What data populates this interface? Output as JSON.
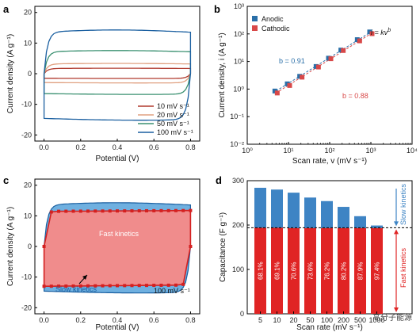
{
  "chart_data": [
    {
      "panel": "a",
      "type": "line",
      "xlabel": "Potential (V)",
      "ylabel": "Current density (A g⁻¹)",
      "xlim": [
        -0.05,
        0.85
      ],
      "ylim": [
        -22,
        22
      ],
      "xticks": [
        "0.0",
        "0.2",
        "0.4",
        "0.6",
        "0.8"
      ],
      "yticks": [
        "-20",
        "-10",
        "0",
        "10",
        "20"
      ],
      "legend_position": "bottom-right",
      "series": [
        {
          "name": "10 mV s⁻¹",
          "color": "#b03a2e",
          "upper": 1.7,
          "lower": -1.5
        },
        {
          "name": "20 mV s⁻¹",
          "color": "#e0a080",
          "upper": 3.2,
          "lower": -2.9
        },
        {
          "name": "50 mV s⁻¹",
          "color": "#3a9070",
          "upper": 7.2,
          "lower": -6.5
        },
        {
          "name": "100 mV s⁻¹",
          "color": "#1a5fa0",
          "upper": 13.6,
          "lower": -14.6
        }
      ]
    },
    {
      "panel": "b",
      "type": "scatter",
      "xlabel": "Scan rate, v (mV s⁻¹)",
      "ylabel": "Current density, i (A g⁻¹)",
      "log_scale": true,
      "xlim": [
        1,
        10000
      ],
      "ylim": [
        0.01,
        1000
      ],
      "xticks": [
        "10⁰",
        "10¹",
        "10²",
        "10³",
        "10⁴"
      ],
      "yticks": [
        "10⁻²",
        "10⁻¹",
        "10⁰",
        "10¹",
        "10²",
        "10³"
      ],
      "x": [
        5,
        10,
        20,
        50,
        100,
        200,
        500,
        1000
      ],
      "series": [
        {
          "name": "Anodic",
          "color": "#2a6fa8",
          "values": [
            0.85,
            1.55,
            2.9,
            6.6,
            13.2,
            26,
            62,
            118
          ]
        },
        {
          "name": "Cathodic",
          "color": "#d84848",
          "values": [
            0.72,
            1.35,
            2.7,
            6.3,
            12.6,
            25,
            56,
            102
          ]
        }
      ],
      "equation": "i = kv",
      "equation_exp": "b",
      "fits": [
        {
          "text": "b = 0.91",
          "color": "#2a6fa8"
        },
        {
          "text": "b = 0.88",
          "color": "#d84848"
        }
      ],
      "legend_position": "top-left"
    },
    {
      "panel": "c",
      "type": "area",
      "xlabel": "Potential (V)",
      "ylabel": "Current density (A g⁻¹)",
      "xlim": [
        -0.05,
        0.85
      ],
      "ylim": [
        -22,
        22
      ],
      "xticks": [
        "0.0",
        "0.2",
        "0.4",
        "0.6",
        "0.8"
      ],
      "yticks": [
        "-20",
        "-10",
        "0",
        "10",
        "20"
      ],
      "total_upper": 13.6,
      "total_lower": -14.6,
      "capacitive_upper": 11.6,
      "capacitive_lower": -12.8,
      "fill_total": "#6fb0e0",
      "fill_capacitive": "#f08c8c",
      "marker_color": "#d42020",
      "label_fast": "Fast kinetics",
      "label_slow": "Slow kinetics",
      "rate_label": "100 mV s⁻¹"
    },
    {
      "panel": "d",
      "type": "bar",
      "xlabel": "Scan rate (mV s⁻¹)",
      "ylabel": "Capacitance (F g⁻¹)",
      "ylim": [
        0,
        300
      ],
      "yticks": [
        "0",
        "100",
        "200",
        "300"
      ],
      "categories": [
        "5",
        "10",
        "20",
        "50",
        "100",
        "200",
        "500",
        "1000"
      ],
      "total": [
        284,
        280,
        273,
        262,
        254,
        241,
        220,
        199
      ],
      "capacitive": [
        194,
        194,
        193,
        193,
        193,
        193,
        193,
        193
      ],
      "percent_labels": [
        "68.1%",
        "69.1%",
        "70.6%",
        "73.6%",
        "76.2%",
        "80.2%",
        "87.9%",
        "97.4%"
      ],
      "total_color": "#3e84c4",
      "capacitive_color": "#e02424",
      "ref_line": 194,
      "label_slow": "Slow kinetics",
      "label_fast": "Fast kinetics"
    }
  ],
  "panel_labels": [
    "a",
    "b",
    "c",
    "d"
  ],
  "watermark": "高分子能源"
}
